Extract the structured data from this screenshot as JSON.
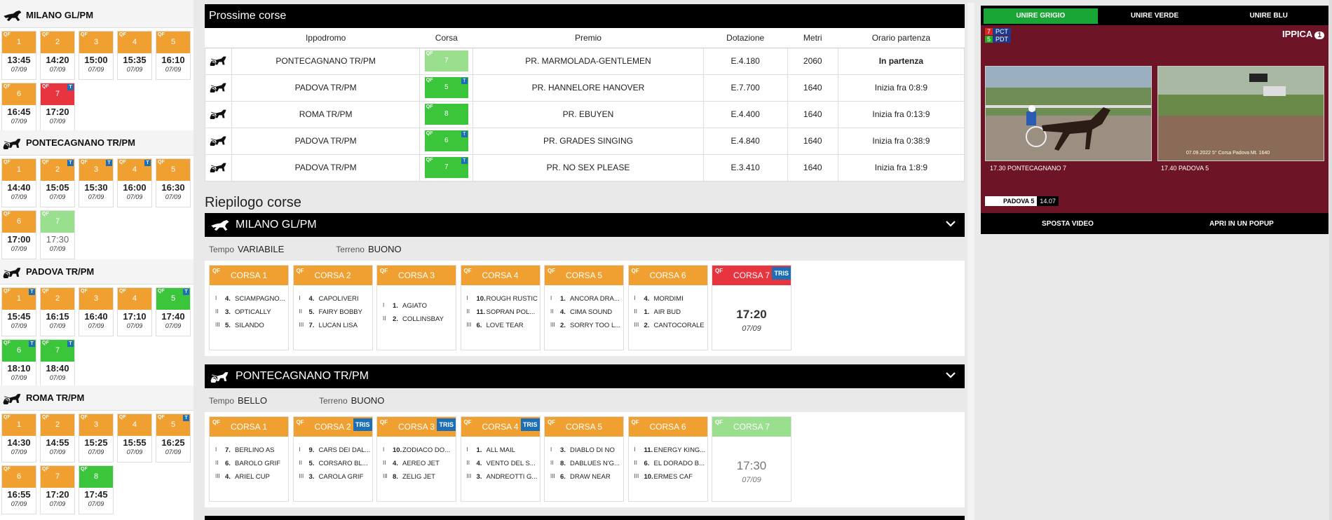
{
  "sidebar": {
    "venues": [
      {
        "name": "MILANO GL/PM",
        "icon": "horse-gallop-icon",
        "races": [
          {
            "num": "1",
            "time": "13:45",
            "date": "07/09",
            "color": "orange",
            "qf": "QF",
            "t": false,
            "done": false
          },
          {
            "num": "2",
            "time": "14:20",
            "date": "07/09",
            "color": "orange",
            "qf": "QF",
            "t": false,
            "done": false
          },
          {
            "num": "3",
            "time": "15:00",
            "date": "07/09",
            "color": "orange",
            "qf": "QF",
            "t": false,
            "done": false
          },
          {
            "num": "4",
            "time": "15:35",
            "date": "07/09",
            "color": "orange",
            "qf": "QF",
            "t": false,
            "done": false
          },
          {
            "num": "5",
            "time": "16:10",
            "date": "07/09",
            "color": "orange",
            "qf": "QF",
            "t": false,
            "done": false
          },
          {
            "num": "6",
            "time": "16:45",
            "date": "07/09",
            "color": "orange",
            "qf": "QF",
            "t": false,
            "done": false
          },
          {
            "num": "7",
            "time": "17:20",
            "date": "07/09",
            "color": "red",
            "qf": "QF",
            "t": true,
            "done": false
          }
        ]
      },
      {
        "name": "PONTECAGNANO TR/PM",
        "icon": "sulky-trot-icon",
        "races": [
          {
            "num": "1",
            "time": "14:40",
            "date": "07/09",
            "color": "orange",
            "qf": "QF",
            "t": false,
            "done": false
          },
          {
            "num": "2",
            "time": "15:05",
            "date": "07/09",
            "color": "orange",
            "qf": "QF",
            "t": true,
            "done": false
          },
          {
            "num": "3",
            "time": "15:30",
            "date": "07/09",
            "color": "orange",
            "qf": "QF",
            "t": true,
            "done": false
          },
          {
            "num": "4",
            "time": "16:00",
            "date": "07/09",
            "color": "orange",
            "qf": "QF",
            "t": true,
            "done": false
          },
          {
            "num": "5",
            "time": "16:30",
            "date": "07/09",
            "color": "orange",
            "qf": "QF",
            "t": false,
            "done": false
          },
          {
            "num": "6",
            "time": "17:00",
            "date": "07/09",
            "color": "orange",
            "qf": "QF",
            "t": false,
            "done": false
          },
          {
            "num": "7",
            "time": "17:30",
            "date": "07/09",
            "color": "lightgreen",
            "qf": "QF",
            "t": false,
            "done": true
          }
        ]
      },
      {
        "name": "PADOVA TR/PM",
        "icon": "sulky-trot-icon",
        "races": [
          {
            "num": "1",
            "time": "15:45",
            "date": "07/09",
            "color": "orange",
            "qf": "QF",
            "t": true,
            "done": false
          },
          {
            "num": "2",
            "time": "16:15",
            "date": "07/09",
            "color": "orange",
            "qf": "QF",
            "t": false,
            "done": false
          },
          {
            "num": "3",
            "time": "16:40",
            "date": "07/09",
            "color": "orange",
            "qf": "QF",
            "t": false,
            "done": false
          },
          {
            "num": "4",
            "time": "17:10",
            "date": "07/09",
            "color": "orange",
            "qf": "QF",
            "t": false,
            "done": false
          },
          {
            "num": "5",
            "time": "17:40",
            "date": "07/09",
            "color": "green",
            "qf": "QF",
            "t": true,
            "done": false
          },
          {
            "num": "6",
            "time": "18:10",
            "date": "07/09",
            "color": "green",
            "qf": "QF",
            "t": true,
            "done": false
          },
          {
            "num": "7",
            "time": "18:40",
            "date": "07/09",
            "color": "green",
            "qf": "QF",
            "t": true,
            "done": false
          }
        ]
      },
      {
        "name": "ROMA TR/PM",
        "icon": "sulky-trot-icon",
        "races": [
          {
            "num": "1",
            "time": "14:30",
            "date": "07/09",
            "color": "orange",
            "qf": "QF",
            "t": false,
            "done": false
          },
          {
            "num": "2",
            "time": "14:55",
            "date": "07/09",
            "color": "orange",
            "qf": "QF",
            "t": false,
            "done": false
          },
          {
            "num": "3",
            "time": "15:25",
            "date": "07/09",
            "color": "orange",
            "qf": "QF",
            "t": false,
            "done": false
          },
          {
            "num": "4",
            "time": "15:55",
            "date": "07/09",
            "color": "orange",
            "qf": "QF",
            "t": false,
            "done": false
          },
          {
            "num": "5",
            "time": "16:25",
            "date": "07/09",
            "color": "orange",
            "qf": "QF",
            "t": true,
            "done": false
          },
          {
            "num": "6",
            "time": "16:55",
            "date": "07/09",
            "color": "orange",
            "qf": "QF",
            "t": false,
            "done": false
          },
          {
            "num": "7",
            "time": "17:20",
            "date": "07/09",
            "color": "orange",
            "qf": "QF",
            "t": false,
            "done": false
          },
          {
            "num": "8",
            "time": "17:45",
            "date": "07/09",
            "color": "green",
            "qf": "QF",
            "t": false,
            "done": false
          }
        ]
      }
    ]
  },
  "next_races": {
    "title": "Prossime corse",
    "columns": [
      "Ippodromo",
      "Corsa",
      "Premio",
      "Dotazione",
      "Metri",
      "Orario partenza"
    ],
    "rows": [
      {
        "venue": "PONTECAGNANO TR/PM",
        "corsa": "7",
        "color": "lightgreen",
        "t": false,
        "premio": "PR. MARMOLADA-GENTLEMEN",
        "dotazione": "E.4.180",
        "metri": "2060",
        "orario": "In partenza",
        "bold": true
      },
      {
        "venue": "PADOVA TR/PM",
        "corsa": "5",
        "color": "green",
        "t": true,
        "premio": "PR. HANNELORE HANOVER",
        "dotazione": "E.7.700",
        "metri": "1640",
        "orario": "Inizia fra 0:8:9",
        "bold": false
      },
      {
        "venue": "ROMA TR/PM",
        "corsa": "8",
        "color": "green",
        "t": false,
        "premio": "PR. EBUYEN",
        "dotazione": "E.4.400",
        "metri": "1640",
        "orario": "Inizia fra 0:13:9",
        "bold": false
      },
      {
        "venue": "PADOVA TR/PM",
        "corsa": "6",
        "color": "green",
        "t": true,
        "premio": "PR. GRADES SINGING",
        "dotazione": "E.4.840",
        "metri": "1640",
        "orario": "Inizia fra 0:38:9",
        "bold": false
      },
      {
        "venue": "PADOVA TR/PM",
        "corsa": "7",
        "color": "green",
        "t": true,
        "premio": "PR. NO SEX PLEASE",
        "dotazione": "E.3.410",
        "metri": "1640",
        "orario": "Inizia fra 1:8:9",
        "bold": false
      }
    ]
  },
  "summary": {
    "title": "Riepilogo corse",
    "sections": [
      {
        "name": "MILANO GL/PM",
        "tempo_label": "Tempo",
        "tempo": "VARIABILE",
        "terreno_label": "Terreno",
        "terreno": "BUONO",
        "races": [
          {
            "label": "CORSA 1",
            "color": "orange",
            "tris": false,
            "done": false,
            "results": [
              [
                "I",
                "4.",
                "SCIAMPAGNO..."
              ],
              [
                "II",
                "3.",
                "OPTICALLY"
              ],
              [
                "III",
                "5.",
                "SILANDO"
              ]
            ]
          },
          {
            "label": "CORSA 2",
            "color": "orange",
            "tris": false,
            "done": false,
            "results": [
              [
                "I",
                "4.",
                "CAPOLIVERI"
              ],
              [
                "II",
                "5.",
                "FAIRY BOBBY"
              ],
              [
                "III",
                "7.",
                "LUCAN LISA"
              ]
            ]
          },
          {
            "label": "CORSA 3",
            "color": "orange",
            "tris": false,
            "done": false,
            "results": [
              [
                "I",
                "1.",
                "AGIATO"
              ],
              [
                "II",
                "2.",
                "COLLINSBAY"
              ]
            ]
          },
          {
            "label": "CORSA 4",
            "color": "orange",
            "tris": false,
            "done": false,
            "results": [
              [
                "I",
                "10.",
                "ROUGH RUSTIC"
              ],
              [
                "II",
                "11.",
                "SOPRAN POL..."
              ],
              [
                "III",
                "6.",
                "LOVE TEAR"
              ]
            ]
          },
          {
            "label": "CORSA 5",
            "color": "orange",
            "tris": false,
            "done": false,
            "results": [
              [
                "I",
                "1.",
                "ANCORA DRA..."
              ],
              [
                "II",
                "4.",
                "CIMA SOUND"
              ],
              [
                "III",
                "2.",
                "SORRY TOO L..."
              ]
            ]
          },
          {
            "label": "CORSA 6",
            "color": "orange",
            "tris": false,
            "done": false,
            "results": [
              [
                "I",
                "4.",
                "MORDIMI"
              ],
              [
                "II",
                "1.",
                "AIR BUD"
              ],
              [
                "III",
                "2.",
                "CANTOCORALE"
              ]
            ]
          },
          {
            "label": "CORSA 7",
            "color": "red",
            "tris": true,
            "done": false,
            "time": "17:20",
            "date": "07/09",
            "results": []
          }
        ]
      },
      {
        "name": "PONTECAGNANO TR/PM",
        "tempo_label": "Tempo",
        "tempo": "BELLO",
        "terreno_label": "Terreno",
        "terreno": "BUONO",
        "races": [
          {
            "label": "CORSA 1",
            "color": "orange",
            "tris": false,
            "done": false,
            "results": [
              [
                "I",
                "7.",
                "BERLINO AS"
              ],
              [
                "II",
                "6.",
                "BAROLO GRIF"
              ],
              [
                "III",
                "4.",
                "ARIEL CUP"
              ]
            ]
          },
          {
            "label": "CORSA 2",
            "color": "orange",
            "tris": true,
            "done": false,
            "results": [
              [
                "I",
                "9.",
                "CARS DEI DAL..."
              ],
              [
                "II",
                "5.",
                "CORSARO BL..."
              ],
              [
                "III",
                "3.",
                "CAROLA GRIF"
              ]
            ]
          },
          {
            "label": "CORSA 3",
            "color": "orange",
            "tris": true,
            "done": false,
            "results": [
              [
                "I",
                "10.",
                "ZODIACO DO..."
              ],
              [
                "II",
                "4.",
                "AEREO JET"
              ],
              [
                "III",
                "8.",
                "ZELIG JET"
              ]
            ]
          },
          {
            "label": "CORSA 4",
            "color": "orange",
            "tris": true,
            "done": false,
            "results": [
              [
                "I",
                "1.",
                "ALL MAIL"
              ],
              [
                "II",
                "4.",
                "VENTO DEL S..."
              ],
              [
                "III",
                "3.",
                "ANDREOTTI G..."
              ]
            ]
          },
          {
            "label": "CORSA 5",
            "color": "orange",
            "tris": false,
            "done": false,
            "results": [
              [
                "I",
                "3.",
                "DIABLO DI NO"
              ],
              [
                "II",
                "8.",
                "DABLUES N'G..."
              ],
              [
                "III",
                "6.",
                "DRAW NEAR"
              ]
            ]
          },
          {
            "label": "CORSA 6",
            "color": "orange",
            "tris": false,
            "done": false,
            "results": [
              [
                "I",
                "11.",
                "ENERGY KING..."
              ],
              [
                "II",
                "6.",
                "EL DORADO B..."
              ],
              [
                "III",
                "10.",
                "ERMES CAF"
              ]
            ]
          },
          {
            "label": "CORSA 7",
            "color": "lightgreen",
            "tris": false,
            "done": true,
            "time": "17:30",
            "date": "07/09",
            "results": []
          }
        ]
      }
    ]
  },
  "video": {
    "tabs": [
      "UNIRE GRIGIO",
      "UNIRE VERDE",
      "UNIRE BLU"
    ],
    "brand": "IPPICA",
    "brand_num": "1",
    "badge1_num": "7",
    "badge1_txt": "PCT",
    "badge2_num": "5",
    "badge2_txt": "PDT",
    "left_caption": "17.30  PONTECAGNANO 7",
    "right_caption": "17.40  PADOVA 5",
    "right_overlay": "07.09.2022   5° Corsa Padova Mt. 1640",
    "ticker_name": "PADOVA 5",
    "ticker_value": "14.07",
    "btn_move": "SPOSTA VIDEO",
    "btn_popup": "APRI IN UN POPUP"
  },
  "flags": {
    "qf": "QF",
    "t": "T",
    "tris": "TRIS"
  }
}
